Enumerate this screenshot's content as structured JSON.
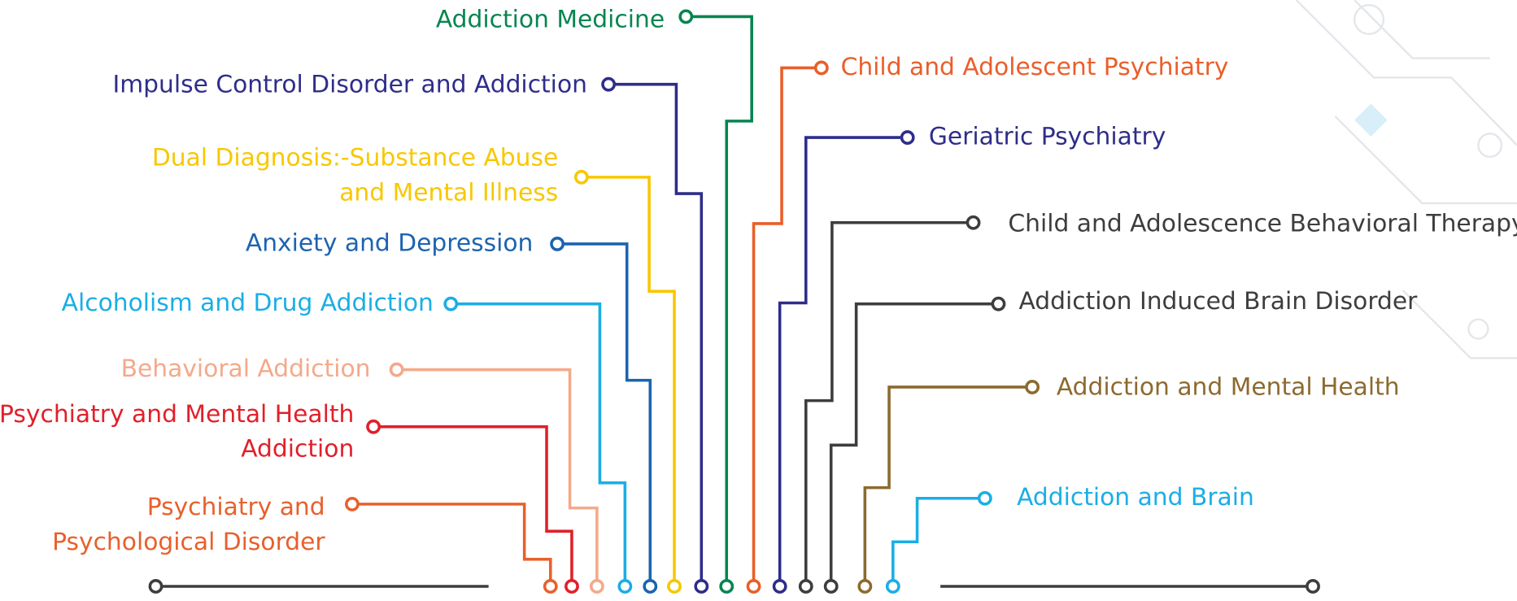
{
  "topics": [
    {
      "lines": [
        "Psychiatry and",
        "Psychological Disorder"
      ],
      "color": "#e8602c"
    },
    {
      "lines": [
        "Psychiatry and Mental Health",
        "Addiction"
      ],
      "color": "#e0202a"
    },
    {
      "lines": [
        "Behavioral Addiction"
      ],
      "color": "#f4a98a"
    },
    {
      "lines": [
        "Alcoholism and Drug Addiction"
      ],
      "color": "#1aaee5"
    },
    {
      "lines": [
        "Anxiety and Depression"
      ],
      "color": "#1c63b0"
    },
    {
      "lines": [
        "Dual Diagnosis:-Substance Abuse",
        "and Mental Illness"
      ],
      "color": "#f8c700"
    },
    {
      "lines": [
        "Impulse Control Disorder and Addiction"
      ],
      "color": "#2e2d8a"
    },
    {
      "lines": [
        "Addiction Medicine"
      ],
      "color": "#078550"
    },
    {
      "lines": [
        "Child and Adolescent Psychiatry"
      ],
      "color": "#ea5e2a"
    },
    {
      "lines": [
        "Geriatric Psychiatry"
      ],
      "color": "#2e2d8a"
    },
    {
      "lines": [
        "Child and Adolescence Behavioral Therapy"
      ],
      "color": "#3d3d3d"
    },
    {
      "lines": [
        "Addiction Induced Brain Disorder"
      ],
      "color": "#3d3d3d"
    },
    {
      "lines": [
        "Addiction and Mental Health"
      ],
      "color": "#8c6a2e"
    },
    {
      "lines": [
        "Addiction and Brain"
      ],
      "color": "#1aaee5"
    }
  ]
}
